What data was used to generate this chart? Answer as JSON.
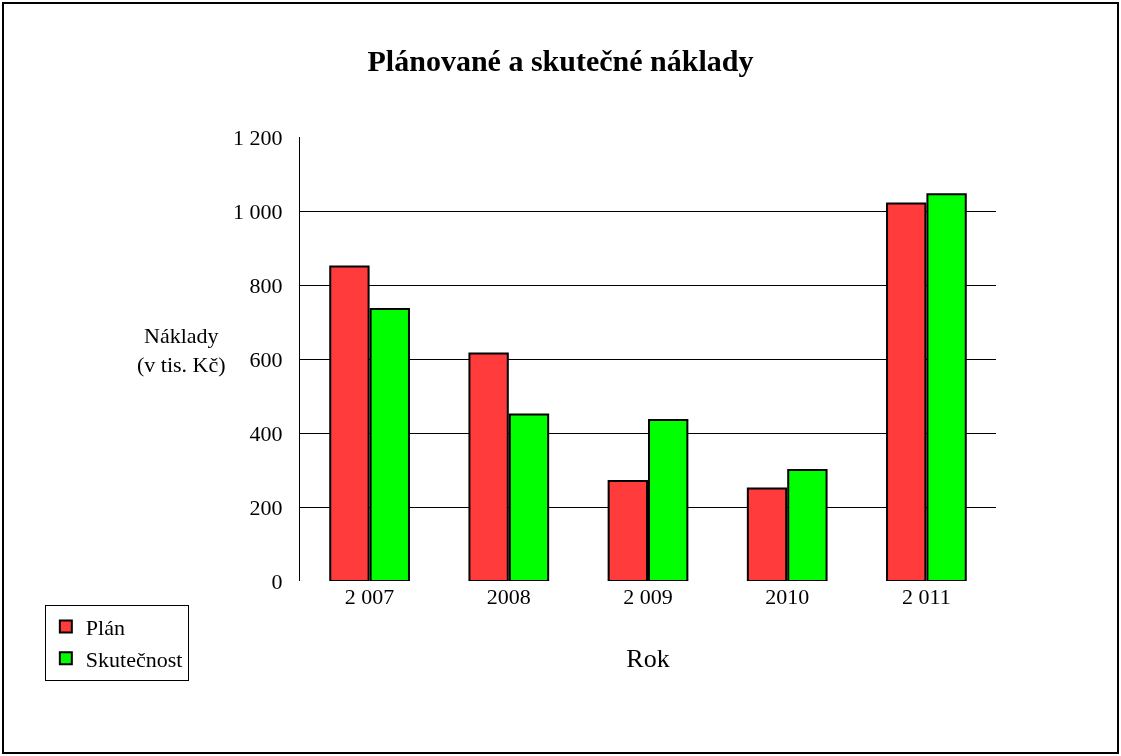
{
  "chart_data": {
    "type": "bar",
    "title": "Plánované a skutečné náklady",
    "xlabel": "Rok",
    "ylabel": "Náklady\n(v tis. Kč)",
    "categories": [
      "2 007",
      "2008",
      "2 009",
      "2010",
      "2 011"
    ],
    "series": [
      {
        "name": "Plán",
        "color": "#ff3b3b",
        "values": [
          850,
          615,
          270,
          250,
          1020
        ]
      },
      {
        "name": "Skutečnost",
        "color": "#00ff00",
        "values": [
          735,
          450,
          435,
          300,
          1045
        ]
      }
    ],
    "ylim": [
      0,
      1200
    ],
    "yticks": [
      0,
      200,
      400,
      600,
      800,
      {
        "value": 1000,
        "label": "1 000"
      },
      {
        "value": 1200,
        "label": "1 200"
      }
    ],
    "grid": "y",
    "legend": "bottom left"
  }
}
